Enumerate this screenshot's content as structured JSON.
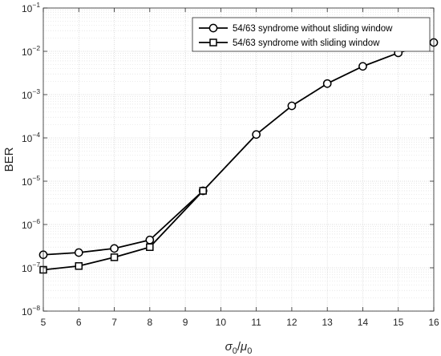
{
  "chart_data": {
    "type": "line",
    "xlabel": "σ0/μ0",
    "ylabel": "BER",
    "x_ticks": [
      5,
      6,
      7,
      8,
      9,
      10,
      11,
      12,
      13,
      14,
      15,
      16
    ],
    "xlim": [
      5,
      16
    ],
    "ylim": [
      1e-08,
      0.1
    ],
    "yscale": "log",
    "y_ticks": [
      {
        "value": 1e-08,
        "base": "10",
        "exp": "−8"
      },
      {
        "value": 1e-07,
        "base": "10",
        "exp": "−7"
      },
      {
        "value": 1e-06,
        "base": "10",
        "exp": "−6"
      },
      {
        "value": 1e-05,
        "base": "10",
        "exp": "−5"
      },
      {
        "value": 0.0001,
        "base": "10",
        "exp": "−4"
      },
      {
        "value": 0.001,
        "base": "10",
        "exp": "−3"
      },
      {
        "value": 0.01,
        "base": "10",
        "exp": "−2"
      },
      {
        "value": 0.1,
        "base": "10",
        "exp": "−1"
      }
    ],
    "grid": true,
    "legend_position": "top-right",
    "series": [
      {
        "name": "54/63 syndrome without sliding window",
        "marker": "circle",
        "color": "#000000",
        "x": [
          5,
          6,
          7,
          8,
          9.5,
          11,
          12,
          13,
          14,
          15,
          16
        ],
        "y": [
          2e-07,
          2.25e-07,
          2.8e-07,
          4.4e-07,
          6e-06,
          0.00012,
          0.00055,
          0.0018,
          0.0045,
          0.0092,
          0.016
        ]
      },
      {
        "name": "54/63 syndrome with sliding window",
        "marker": "square",
        "color": "#000000",
        "x": [
          5,
          6,
          7,
          8,
          9.5
        ],
        "y": [
          9e-08,
          1.1e-07,
          1.75e-07,
          3e-07,
          6e-06
        ]
      }
    ]
  }
}
